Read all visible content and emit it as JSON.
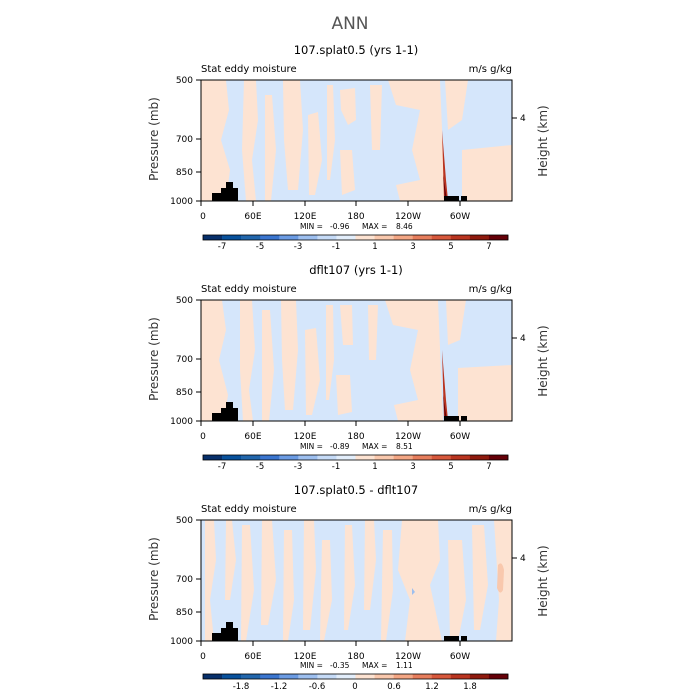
{
  "figure_title": "ANN",
  "colors": {
    "pos_light": "#fde3d2",
    "neg_light": "#d5e6fb",
    "black": "#000000"
  },
  "chart_data": [
    {
      "type": "heatmap",
      "title": "107.splat0.5 (yrs 1-1)",
      "field_label": "Stat eddy moisture",
      "units": "m/s g/kg",
      "ylabel": "Pressure (mb)",
      "ylabel_right": "Height (km)",
      "yticks": [
        "500",
        "700",
        "850",
        "1000"
      ],
      "yticks_right": [
        "4"
      ],
      "xticks": [
        "0",
        "60E",
        "120E",
        "180",
        "120W",
        "60W"
      ],
      "stats": {
        "min_label": "MIN =",
        "min": "-0.96",
        "max_label": "MAX =",
        "max": "8.46"
      },
      "colorbar": {
        "tick_labels": [
          "-7",
          "-5",
          "-3",
          "-1",
          "1",
          "3",
          "5",
          "7"
        ],
        "colors": [
          "#08306b",
          "#08519c",
          "#2166ac",
          "#3a75cf",
          "#6b9be3",
          "#9dbfef",
          "#c6dbf7",
          "#e3eefb",
          "#fde3d2",
          "#f9c8ad",
          "#f3a684",
          "#e67d5c",
          "#d6573b",
          "#b9341f",
          "#8f1a0e",
          "#650008"
        ]
      }
    },
    {
      "type": "heatmap",
      "title": "dflt107 (yrs 1-1)",
      "field_label": "Stat eddy moisture",
      "units": "m/s g/kg",
      "ylabel": "Pressure (mb)",
      "ylabel_right": "Height (km)",
      "yticks": [
        "500",
        "700",
        "850",
        "1000"
      ],
      "yticks_right": [
        "4"
      ],
      "xticks": [
        "0",
        "60E",
        "120E",
        "180",
        "120W",
        "60W"
      ],
      "stats": {
        "min_label": "MIN =",
        "min": "-0.89",
        "max_label": "MAX =",
        "max": "8.51"
      },
      "colorbar": {
        "tick_labels": [
          "-7",
          "-5",
          "-3",
          "-1",
          "1",
          "3",
          "5",
          "7"
        ],
        "colors": [
          "#08306b",
          "#08519c",
          "#2166ac",
          "#3a75cf",
          "#6b9be3",
          "#9dbfef",
          "#c6dbf7",
          "#e3eefb",
          "#fde3d2",
          "#f9c8ad",
          "#f3a684",
          "#e67d5c",
          "#d6573b",
          "#b9341f",
          "#8f1a0e",
          "#650008"
        ]
      }
    },
    {
      "type": "heatmap",
      "title": "107.splat0.5 - dflt107",
      "field_label": "Stat eddy moisture",
      "units": "m/s g/kg",
      "ylabel": "Pressure (mb)",
      "ylabel_right": "Height (km)",
      "yticks": [
        "500",
        "700",
        "850",
        "1000"
      ],
      "yticks_right": [
        "4"
      ],
      "xticks": [
        "0",
        "60E",
        "120E",
        "180",
        "120W",
        "60W"
      ],
      "stats": {
        "min_label": "MIN =",
        "min": "-0.35",
        "max_label": "MAX =",
        "max": "1.11"
      },
      "colorbar": {
        "tick_labels": [
          "-1.8",
          "-1.2",
          "-0.6",
          "0",
          "0.6",
          "1.2",
          "1.8"
        ],
        "colors": [
          "#08306b",
          "#08519c",
          "#2166ac",
          "#3a75cf",
          "#6b9be3",
          "#9dbfef",
          "#c6dbf7",
          "#e3eefb",
          "#fde3d2",
          "#f9c8ad",
          "#f3a684",
          "#e67d5c",
          "#d6573b",
          "#b9341f",
          "#8f1a0e",
          "#650008"
        ]
      }
    }
  ]
}
